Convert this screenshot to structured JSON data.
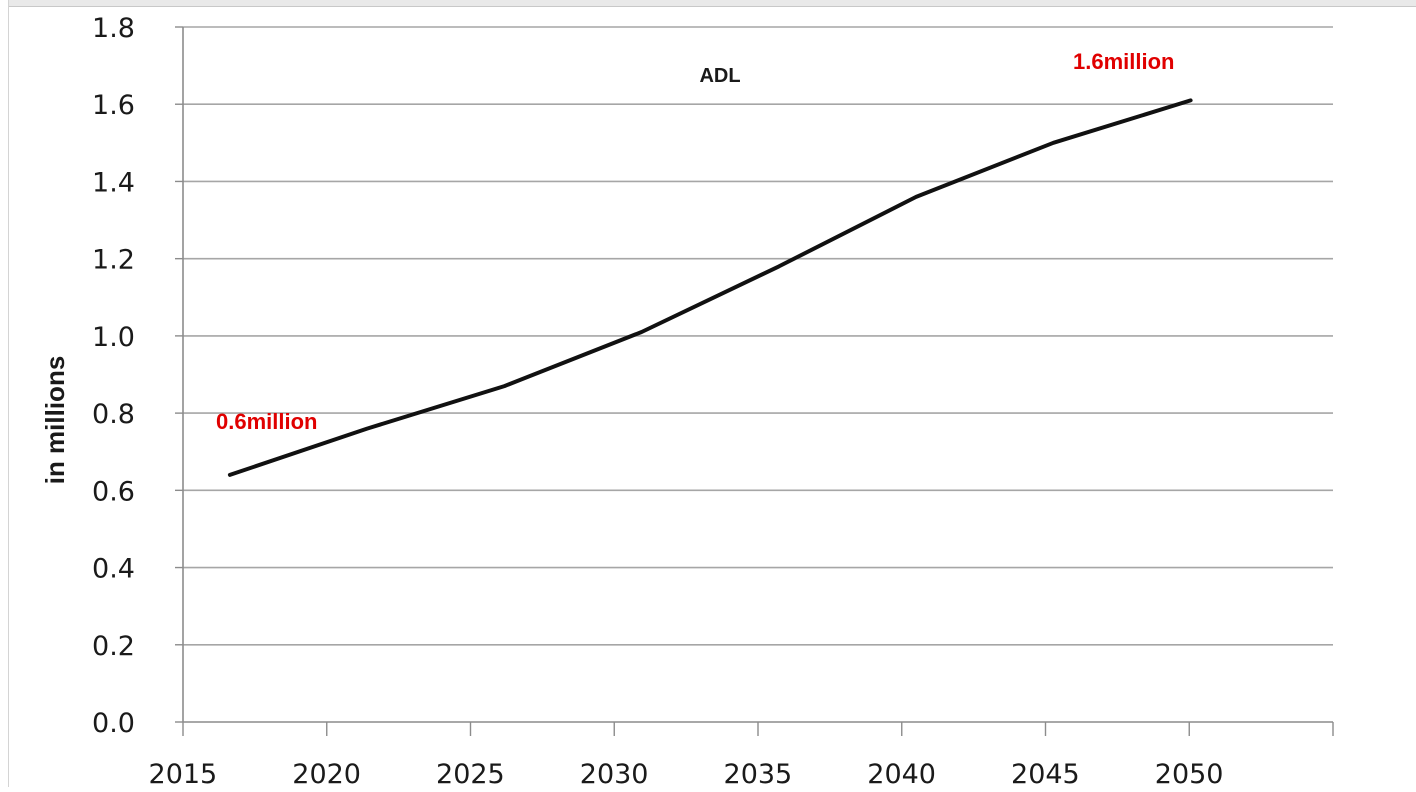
{
  "chart_data": {
    "type": "line",
    "title": "ADL",
    "xlabel": "",
    "ylabel": "in millions",
    "categories": [
      "2015",
      "2020",
      "2025",
      "2030",
      "2035",
      "2040",
      "2045",
      "2050"
    ],
    "y_ticks": [
      "0.0",
      "0.2",
      "0.4",
      "0.6",
      "0.8",
      "1.0",
      "1.2",
      "1.4",
      "1.6",
      "1.8"
    ],
    "ylim": [
      0,
      1.8
    ],
    "grid": true,
    "series": [
      {
        "x": [
          2015,
          2020,
          2025,
          2030,
          2035,
          2040,
          2045,
          2050
        ],
        "values": [
          0.64,
          0.76,
          0.87,
          1.01,
          1.18,
          1.36,
          1.5,
          1.61
        ],
        "color": "#111111"
      }
    ],
    "annotations": [
      {
        "text": "0.6million",
        "color": "#e00000",
        "near": "2015"
      },
      {
        "text": "1.6million",
        "color": "#e00000",
        "near": "2050"
      }
    ]
  }
}
